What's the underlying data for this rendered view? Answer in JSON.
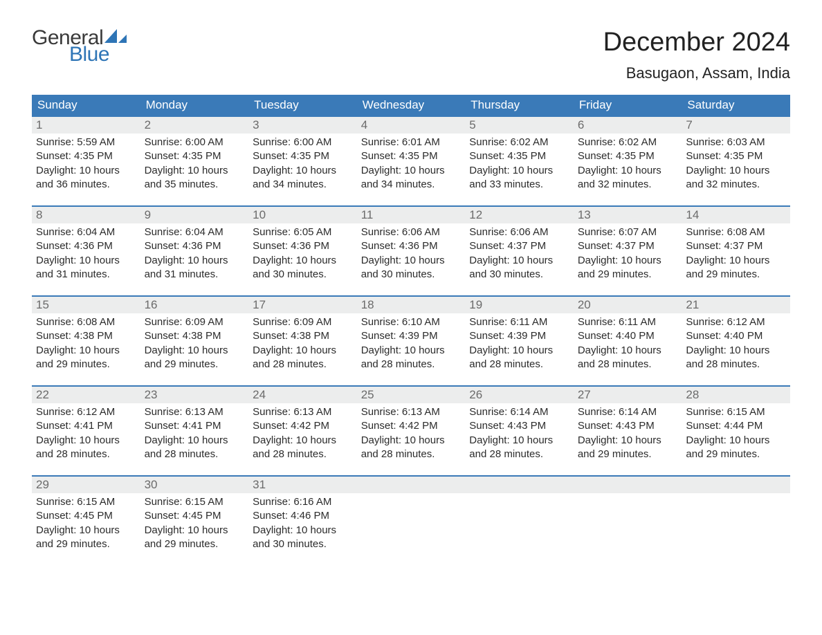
{
  "logo": {
    "text_general": "General",
    "text_blue": "Blue",
    "sail_color": "#2e75b6"
  },
  "header": {
    "month_title": "December 2024",
    "location": "Basugaon, Assam, India"
  },
  "colors": {
    "header_bg": "#3a7ab8",
    "header_text": "#ffffff",
    "daynum_bg": "#eceded",
    "daynum_text": "#6b6b6b",
    "body_text": "#2b2b2b",
    "week_border": "#3a7ab8",
    "page_bg": "#ffffff"
  },
  "typography": {
    "month_title_size": 38,
    "location_size": 22,
    "weekday_size": 17,
    "daynum_size": 17,
    "content_size": 15,
    "font_family": "Arial"
  },
  "weekdays": [
    "Sunday",
    "Monday",
    "Tuesday",
    "Wednesday",
    "Thursday",
    "Friday",
    "Saturday"
  ],
  "days": [
    {
      "n": 1,
      "sunrise": "5:59 AM",
      "sunset": "4:35 PM",
      "daylight": "10 hours and 36 minutes."
    },
    {
      "n": 2,
      "sunrise": "6:00 AM",
      "sunset": "4:35 PM",
      "daylight": "10 hours and 35 minutes."
    },
    {
      "n": 3,
      "sunrise": "6:00 AM",
      "sunset": "4:35 PM",
      "daylight": "10 hours and 34 minutes."
    },
    {
      "n": 4,
      "sunrise": "6:01 AM",
      "sunset": "4:35 PM",
      "daylight": "10 hours and 34 minutes."
    },
    {
      "n": 5,
      "sunrise": "6:02 AM",
      "sunset": "4:35 PM",
      "daylight": "10 hours and 33 minutes."
    },
    {
      "n": 6,
      "sunrise": "6:02 AM",
      "sunset": "4:35 PM",
      "daylight": "10 hours and 32 minutes."
    },
    {
      "n": 7,
      "sunrise": "6:03 AM",
      "sunset": "4:35 PM",
      "daylight": "10 hours and 32 minutes."
    },
    {
      "n": 8,
      "sunrise": "6:04 AM",
      "sunset": "4:36 PM",
      "daylight": "10 hours and 31 minutes."
    },
    {
      "n": 9,
      "sunrise": "6:04 AM",
      "sunset": "4:36 PM",
      "daylight": "10 hours and 31 minutes."
    },
    {
      "n": 10,
      "sunrise": "6:05 AM",
      "sunset": "4:36 PM",
      "daylight": "10 hours and 30 minutes."
    },
    {
      "n": 11,
      "sunrise": "6:06 AM",
      "sunset": "4:36 PM",
      "daylight": "10 hours and 30 minutes."
    },
    {
      "n": 12,
      "sunrise": "6:06 AM",
      "sunset": "4:37 PM",
      "daylight": "10 hours and 30 minutes."
    },
    {
      "n": 13,
      "sunrise": "6:07 AM",
      "sunset": "4:37 PM",
      "daylight": "10 hours and 29 minutes."
    },
    {
      "n": 14,
      "sunrise": "6:08 AM",
      "sunset": "4:37 PM",
      "daylight": "10 hours and 29 minutes."
    },
    {
      "n": 15,
      "sunrise": "6:08 AM",
      "sunset": "4:38 PM",
      "daylight": "10 hours and 29 minutes."
    },
    {
      "n": 16,
      "sunrise": "6:09 AM",
      "sunset": "4:38 PM",
      "daylight": "10 hours and 29 minutes."
    },
    {
      "n": 17,
      "sunrise": "6:09 AM",
      "sunset": "4:38 PM",
      "daylight": "10 hours and 28 minutes."
    },
    {
      "n": 18,
      "sunrise": "6:10 AM",
      "sunset": "4:39 PM",
      "daylight": "10 hours and 28 minutes."
    },
    {
      "n": 19,
      "sunrise": "6:11 AM",
      "sunset": "4:39 PM",
      "daylight": "10 hours and 28 minutes."
    },
    {
      "n": 20,
      "sunrise": "6:11 AM",
      "sunset": "4:40 PM",
      "daylight": "10 hours and 28 minutes."
    },
    {
      "n": 21,
      "sunrise": "6:12 AM",
      "sunset": "4:40 PM",
      "daylight": "10 hours and 28 minutes."
    },
    {
      "n": 22,
      "sunrise": "6:12 AM",
      "sunset": "4:41 PM",
      "daylight": "10 hours and 28 minutes."
    },
    {
      "n": 23,
      "sunrise": "6:13 AM",
      "sunset": "4:41 PM",
      "daylight": "10 hours and 28 minutes."
    },
    {
      "n": 24,
      "sunrise": "6:13 AM",
      "sunset": "4:42 PM",
      "daylight": "10 hours and 28 minutes."
    },
    {
      "n": 25,
      "sunrise": "6:13 AM",
      "sunset": "4:42 PM",
      "daylight": "10 hours and 28 minutes."
    },
    {
      "n": 26,
      "sunrise": "6:14 AM",
      "sunset": "4:43 PM",
      "daylight": "10 hours and 28 minutes."
    },
    {
      "n": 27,
      "sunrise": "6:14 AM",
      "sunset": "4:43 PM",
      "daylight": "10 hours and 29 minutes."
    },
    {
      "n": 28,
      "sunrise": "6:15 AM",
      "sunset": "4:44 PM",
      "daylight": "10 hours and 29 minutes."
    },
    {
      "n": 29,
      "sunrise": "6:15 AM",
      "sunset": "4:45 PM",
      "daylight": "10 hours and 29 minutes."
    },
    {
      "n": 30,
      "sunrise": "6:15 AM",
      "sunset": "4:45 PM",
      "daylight": "10 hours and 29 minutes."
    },
    {
      "n": 31,
      "sunrise": "6:16 AM",
      "sunset": "4:46 PM",
      "daylight": "10 hours and 30 minutes."
    }
  ],
  "labels": {
    "sunrise_prefix": "Sunrise: ",
    "sunset_prefix": "Sunset: ",
    "daylight_prefix": "Daylight: "
  }
}
